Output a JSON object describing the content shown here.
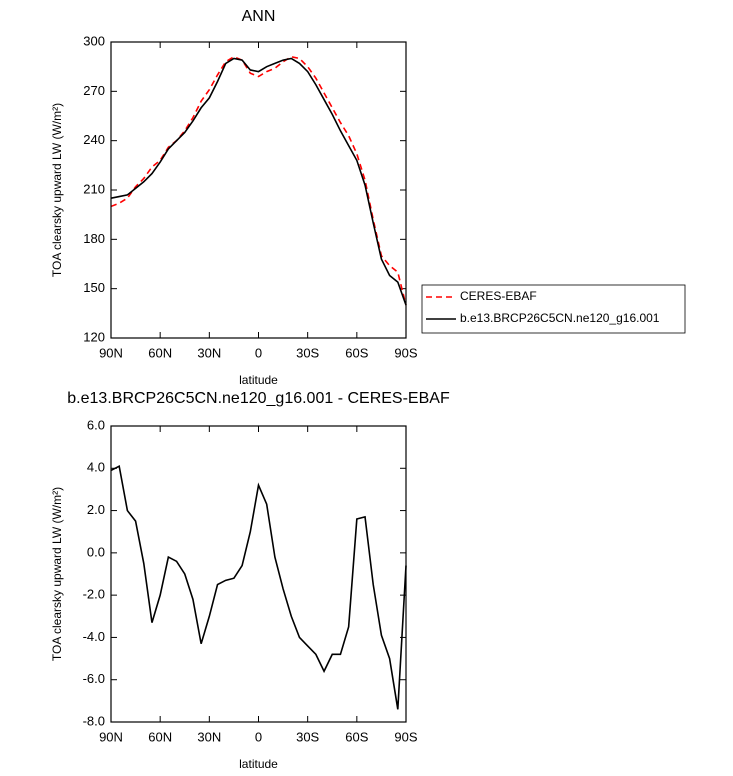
{
  "chart_data": [
    {
      "type": "line",
      "title": "ANN",
      "x_label": "latitude",
      "y_label": "TOA clearsky upward LW (W/m²)",
      "x": [
        90,
        85,
        80,
        75,
        70,
        65,
        60,
        55,
        50,
        45,
        40,
        35,
        30,
        25,
        20,
        15,
        10,
        5,
        0,
        -5,
        -10,
        -15,
        -20,
        -25,
        -30,
        -35,
        -40,
        -45,
        -50,
        -55,
        -60,
        -65,
        -70,
        -75,
        -80,
        -85,
        -90
      ],
      "series": [
        {
          "name": "CERES-EBAF",
          "color": "#ff0000",
          "dashed": true,
          "values": [
            200,
            202,
            205,
            212,
            217,
            224,
            228,
            236,
            240,
            246,
            254,
            264,
            271,
            280,
            288,
            291,
            289,
            281,
            279,
            282,
            284,
            288,
            291,
            290,
            285,
            278,
            269,
            260,
            251,
            243,
            232,
            216,
            192,
            170,
            164,
            160,
            140
          ]
        },
        {
          "name": "b.e13.BRCP26C5CN.ne120_g16.001",
          "color": "#000000",
          "dashed": false,
          "values": [
            205,
            206,
            207,
            211,
            215,
            220,
            227,
            235,
            240,
            245,
            252,
            260,
            266,
            276,
            287,
            290,
            289,
            283,
            282,
            285,
            287,
            289,
            290,
            287,
            282,
            274,
            265,
            256,
            246,
            237,
            228,
            213,
            190,
            168,
            158,
            154,
            140
          ]
        }
      ],
      "xlim": [
        90,
        -90
      ],
      "xticks": [
        {
          "value": 90,
          "label": "90N"
        },
        {
          "value": 60,
          "label": "60N"
        },
        {
          "value": 30,
          "label": "30N"
        },
        0,
        {
          "value": -30,
          "label": "30S"
        },
        {
          "value": -60,
          "label": "60S"
        },
        {
          "value": -90,
          "label": "90S"
        }
      ],
      "ylim": [
        120,
        300
      ],
      "yticks": [
        120,
        150,
        180,
        210,
        240,
        270,
        300
      ],
      "legend": "right"
    },
    {
      "type": "line",
      "title": "b.e13.BRCP26C5CN.ne120_g16.001 - CERES-EBAF",
      "x_label": "latitude",
      "y_label": "TOA clearsky upward LW (W/m²)",
      "x": [
        90,
        85,
        80,
        75,
        70,
        65,
        60,
        55,
        50,
        45,
        40,
        35,
        30,
        25,
        20,
        15,
        10,
        5,
        0,
        -5,
        -10,
        -15,
        -20,
        -25,
        -30,
        -35,
        -40,
        -45,
        -50,
        -55,
        -60,
        -65,
        -70,
        -75,
        -80,
        -85,
        -90
      ],
      "values": [
        3.9,
        4.1,
        2.0,
        1.5,
        -0.5,
        -3.3,
        -2.0,
        -0.2,
        -0.4,
        -1.0,
        -2.2,
        -4.3,
        -3.0,
        -1.5,
        -1.3,
        -1.2,
        -0.6,
        1.0,
        3.2,
        2.3,
        -0.2,
        -1.7,
        -3.0,
        -4.0,
        -4.4,
        -4.8,
        -5.6,
        -4.8,
        -4.8,
        -3.5,
        1.6,
        1.7,
        -1.5,
        -3.9,
        -5.0,
        -7.4,
        -0.6
      ],
      "color": "#000000",
      "xlim": [
        90,
        -90
      ],
      "xticks": [
        {
          "value": 90,
          "label": "90N"
        },
        {
          "value": 60,
          "label": "60N"
        },
        {
          "value": 30,
          "label": "30N"
        },
        0,
        {
          "value": -30,
          "label": "30S"
        },
        {
          "value": -60,
          "label": "60S"
        },
        {
          "value": -90,
          "label": "90S"
        }
      ],
      "ylim": [
        -8,
        6
      ],
      "yticks": [
        {
          "value": -8,
          "label": "-8.0"
        },
        {
          "value": -6,
          "label": "-6.0"
        },
        {
          "value": -4,
          "label": "-4.0"
        },
        {
          "value": -2,
          "label": "-2.0"
        },
        {
          "value": 0,
          "label": "0.0"
        },
        {
          "value": 2,
          "label": "2.0"
        },
        {
          "value": 4,
          "label": "4.0"
        },
        {
          "value": 6,
          "label": "6.0"
        }
      ]
    }
  ]
}
